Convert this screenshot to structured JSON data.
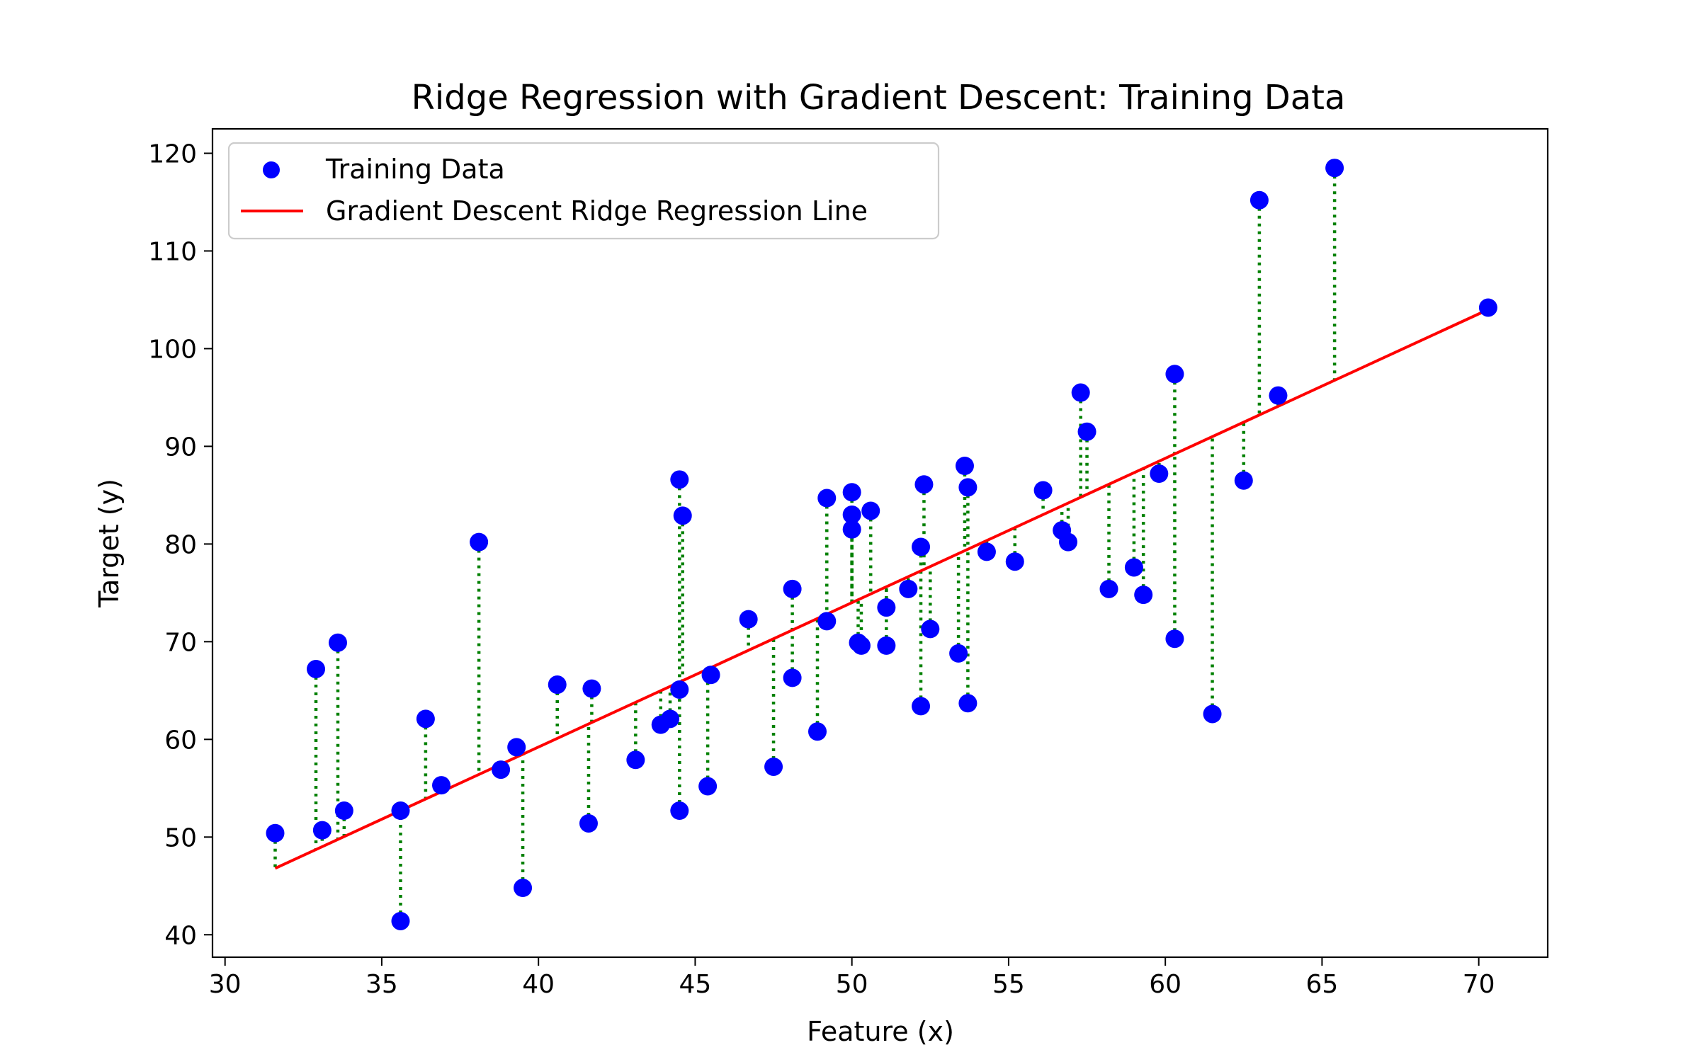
{
  "chart_data": {
    "type": "scatter",
    "title": "Ridge Regression with Gradient Descent: Training Data",
    "xlabel": "Feature (x)",
    "ylabel": "Target (y)",
    "xlim": [
      29.6,
      72.2
    ],
    "ylim": [
      37.7,
      122.5
    ],
    "xticks": [
      30,
      35,
      40,
      45,
      50,
      55,
      60,
      65,
      70
    ],
    "yticks": [
      40,
      50,
      60,
      70,
      80,
      90,
      100,
      110,
      120
    ],
    "grid": false,
    "legend_position": "top-left",
    "legend": [
      "Training Data",
      "Gradient Descent Ridge Regression Line"
    ],
    "colors": {
      "points": "#0000ff",
      "line": "#ff0000",
      "residuals": "#008000"
    },
    "line": {
      "name": "Gradient Descent Ridge Regression Line",
      "x": [
        31.6,
        70.3
      ],
      "y": [
        46.8,
        104.0
      ]
    },
    "series": [
      {
        "name": "Training Data",
        "x": [
          31.6,
          32.9,
          33.1,
          33.6,
          33.8,
          35.6,
          35.6,
          36.4,
          36.9,
          38.1,
          38.8,
          39.3,
          39.5,
          40.6,
          41.6,
          41.7,
          43.1,
          43.9,
          44.2,
          44.5,
          44.5,
          44.5,
          44.6,
          45.4,
          45.5,
          46.7,
          47.5,
          48.1,
          48.1,
          48.9,
          49.2,
          49.2,
          50.0,
          50.0,
          50.0,
          50.2,
          50.3,
          50.6,
          51.1,
          51.1,
          51.8,
          52.2,
          52.2,
          52.3,
          52.5,
          53.4,
          53.6,
          53.7,
          53.7,
          54.3,
          55.2,
          56.1,
          56.7,
          56.9,
          57.3,
          57.5,
          58.2,
          59.0,
          59.3,
          59.8,
          60.3,
          60.3,
          61.5,
          62.5,
          63.0,
          63.6,
          65.4,
          70.3
        ],
        "y": [
          50.4,
          67.2,
          50.7,
          69.9,
          52.7,
          41.4,
          52.7,
          62.1,
          55.3,
          80.2,
          56.9,
          59.2,
          44.8,
          65.6,
          51.4,
          65.2,
          57.9,
          61.5,
          62.1,
          65.1,
          52.7,
          86.6,
          82.9,
          55.2,
          66.6,
          72.3,
          57.2,
          75.4,
          66.3,
          60.8,
          84.7,
          72.1,
          85.3,
          83.0,
          81.5,
          69.9,
          69.6,
          83.4,
          73.5,
          69.6,
          75.4,
          79.7,
          63.4,
          86.1,
          71.3,
          68.8,
          88.0,
          85.8,
          63.7,
          79.2,
          78.2,
          85.5,
          81.4,
          80.2,
          95.5,
          91.5,
          75.4,
          77.6,
          74.8,
          87.2,
          97.4,
          70.3,
          62.6,
          86.5,
          115.2,
          95.2,
          118.5,
          104.2
        ]
      }
    ]
  }
}
